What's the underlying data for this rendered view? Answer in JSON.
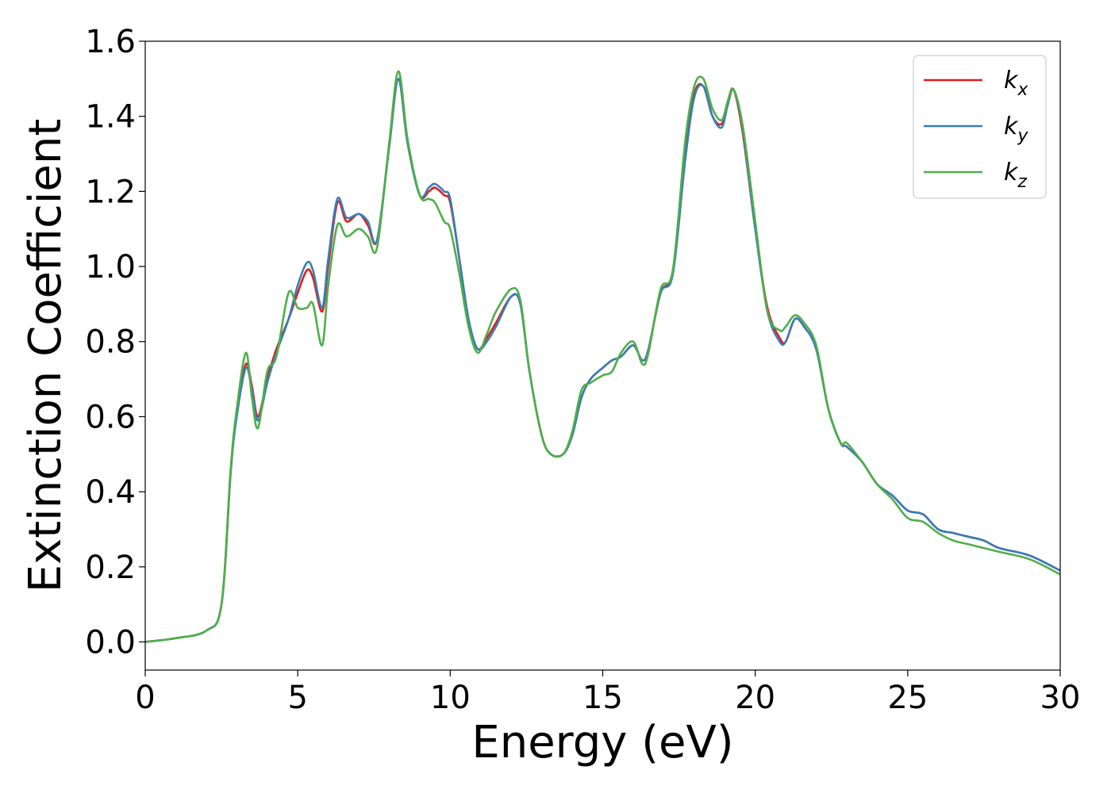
{
  "chart_data": {
    "type": "line",
    "title": "",
    "xlabel": "Energy (eV)",
    "ylabel": "Extinction Coefficient",
    "xlim": [
      0,
      30
    ],
    "ylim": [
      -0.075,
      1.6
    ],
    "xticks": [
      0,
      5,
      10,
      15,
      20,
      25,
      30
    ],
    "xtick_labels": [
      "0",
      "5",
      "10",
      "15",
      "20",
      "25",
      "30"
    ],
    "yticks": [
      0.0,
      0.2,
      0.4,
      0.6,
      0.8,
      1.0,
      1.2,
      1.4,
      1.6
    ],
    "ytick_labels": [
      "0.0",
      "0.2",
      "0.4",
      "0.6",
      "0.8",
      "1.0",
      "1.2",
      "1.4",
      "1.6"
    ],
    "grid": false,
    "legend_position": "top-right",
    "series": [
      {
        "name": "k_x",
        "label_main": "k",
        "label_sub": "x",
        "color": "#e41a1c",
        "x": [
          0,
          1,
          2,
          2.5,
          2.8,
          3.0,
          3.3,
          3.5,
          3.7,
          4.0,
          4.3,
          4.7,
          5.0,
          5.3,
          5.5,
          5.8,
          6.0,
          6.3,
          6.6,
          7.0,
          7.3,
          7.6,
          8.0,
          8.3,
          8.6,
          9.0,
          9.3,
          9.5,
          9.8,
          10.0,
          10.3,
          10.6,
          10.9,
          11.2,
          11.5,
          12.0,
          12.3,
          12.6,
          13.0,
          13.3,
          13.7,
          14.0,
          14.3,
          14.6,
          15.0,
          15.3,
          15.6,
          16.0,
          16.3,
          16.5,
          16.9,
          17.3,
          17.7,
          18.0,
          18.3,
          18.6,
          18.9,
          19.1,
          19.3,
          19.6,
          20.0,
          20.4,
          20.8,
          21.0,
          21.3,
          21.6,
          22.0,
          22.4,
          22.8,
          23.0,
          23.5,
          24.0,
          24.5,
          25.0,
          25.5,
          26.0,
          26.5,
          27.0,
          27.5,
          28.0,
          29.0,
          30.0
        ],
        "y": [
          0.0,
          0.01,
          0.03,
          0.1,
          0.45,
          0.61,
          0.74,
          0.68,
          0.6,
          0.7,
          0.78,
          0.86,
          0.93,
          0.99,
          0.97,
          0.88,
          1.0,
          1.17,
          1.12,
          1.14,
          1.11,
          1.07,
          1.32,
          1.5,
          1.33,
          1.19,
          1.2,
          1.21,
          1.19,
          1.17,
          1.02,
          0.86,
          0.78,
          0.81,
          0.85,
          0.92,
          0.9,
          0.72,
          0.55,
          0.5,
          0.5,
          0.55,
          0.65,
          0.7,
          0.73,
          0.75,
          0.76,
          0.79,
          0.75,
          0.78,
          0.93,
          0.99,
          1.3,
          1.46,
          1.48,
          1.4,
          1.38,
          1.44,
          1.47,
          1.35,
          1.1,
          0.89,
          0.81,
          0.8,
          0.86,
          0.84,
          0.78,
          0.62,
          0.53,
          0.52,
          0.48,
          0.42,
          0.39,
          0.35,
          0.34,
          0.3,
          0.29,
          0.28,
          0.27,
          0.25,
          0.23,
          0.19
        ]
      },
      {
        "name": "k_y",
        "label_main": "k",
        "label_sub": "y",
        "color": "#377eb8",
        "x": [
          0,
          1,
          2,
          2.5,
          2.8,
          3.0,
          3.3,
          3.5,
          3.7,
          4.0,
          4.3,
          4.7,
          5.0,
          5.3,
          5.5,
          5.8,
          6.0,
          6.3,
          6.6,
          7.0,
          7.3,
          7.6,
          8.0,
          8.3,
          8.6,
          9.0,
          9.3,
          9.5,
          9.8,
          10.0,
          10.3,
          10.6,
          10.9,
          11.2,
          11.5,
          12.0,
          12.3,
          12.6,
          13.0,
          13.3,
          13.7,
          14.0,
          14.3,
          14.6,
          15.0,
          15.3,
          15.6,
          16.0,
          16.3,
          16.5,
          16.9,
          17.3,
          17.7,
          18.0,
          18.3,
          18.6,
          18.9,
          19.1,
          19.3,
          19.6,
          20.0,
          20.4,
          20.8,
          21.0,
          21.3,
          21.6,
          22.0,
          22.4,
          22.8,
          23.0,
          23.5,
          24.0,
          24.5,
          25.0,
          25.5,
          26.0,
          26.5,
          27.0,
          27.5,
          28.0,
          29.0,
          30.0
        ],
        "y": [
          0.0,
          0.01,
          0.03,
          0.1,
          0.45,
          0.6,
          0.73,
          0.67,
          0.59,
          0.69,
          0.77,
          0.86,
          0.95,
          1.01,
          0.99,
          0.89,
          1.02,
          1.18,
          1.13,
          1.14,
          1.12,
          1.07,
          1.32,
          1.5,
          1.33,
          1.19,
          1.21,
          1.22,
          1.2,
          1.18,
          1.02,
          0.86,
          0.78,
          0.8,
          0.84,
          0.92,
          0.9,
          0.72,
          0.55,
          0.5,
          0.5,
          0.55,
          0.65,
          0.7,
          0.73,
          0.75,
          0.76,
          0.79,
          0.75,
          0.78,
          0.93,
          0.98,
          1.28,
          1.45,
          1.48,
          1.4,
          1.37,
          1.43,
          1.47,
          1.36,
          1.1,
          0.88,
          0.8,
          0.8,
          0.86,
          0.84,
          0.78,
          0.62,
          0.53,
          0.52,
          0.48,
          0.42,
          0.39,
          0.35,
          0.34,
          0.3,
          0.29,
          0.28,
          0.27,
          0.25,
          0.23,
          0.19
        ]
      },
      {
        "name": "k_z",
        "label_main": "k",
        "label_sub": "z",
        "color": "#4daf4a",
        "x": [
          0,
          1,
          2,
          2.5,
          2.8,
          3.0,
          3.3,
          3.5,
          3.7,
          4.0,
          4.3,
          4.7,
          5.0,
          5.3,
          5.5,
          5.8,
          6.0,
          6.3,
          6.6,
          7.0,
          7.3,
          7.6,
          8.0,
          8.3,
          8.6,
          9.0,
          9.3,
          9.5,
          9.8,
          10.0,
          10.3,
          10.6,
          10.9,
          11.2,
          11.5,
          12.0,
          12.3,
          12.6,
          13.0,
          13.3,
          13.7,
          14.0,
          14.3,
          14.6,
          15.0,
          15.3,
          15.6,
          16.0,
          16.3,
          16.5,
          16.9,
          17.3,
          17.7,
          18.0,
          18.3,
          18.6,
          18.9,
          19.1,
          19.3,
          19.6,
          20.0,
          20.4,
          20.8,
          21.0,
          21.3,
          21.6,
          22.0,
          22.4,
          22.8,
          23.0,
          23.5,
          24.0,
          24.5,
          25.0,
          25.5,
          26.0,
          26.5,
          27.0,
          27.5,
          28.0,
          29.0,
          30.0
        ],
        "y": [
          0.0,
          0.01,
          0.03,
          0.1,
          0.46,
          0.62,
          0.77,
          0.65,
          0.57,
          0.72,
          0.76,
          0.93,
          0.89,
          0.89,
          0.9,
          0.79,
          0.95,
          1.11,
          1.08,
          1.1,
          1.08,
          1.05,
          1.33,
          1.52,
          1.34,
          1.19,
          1.18,
          1.17,
          1.12,
          1.1,
          0.98,
          0.84,
          0.77,
          0.82,
          0.88,
          0.94,
          0.91,
          0.72,
          0.55,
          0.5,
          0.5,
          0.56,
          0.67,
          0.69,
          0.71,
          0.72,
          0.77,
          0.8,
          0.74,
          0.77,
          0.94,
          0.99,
          1.33,
          1.48,
          1.5,
          1.42,
          1.39,
          1.44,
          1.47,
          1.37,
          1.12,
          0.88,
          0.83,
          0.84,
          0.87,
          0.85,
          0.79,
          0.62,
          0.53,
          0.53,
          0.48,
          0.42,
          0.38,
          0.33,
          0.32,
          0.29,
          0.27,
          0.26,
          0.25,
          0.24,
          0.22,
          0.18
        ]
      }
    ]
  }
}
